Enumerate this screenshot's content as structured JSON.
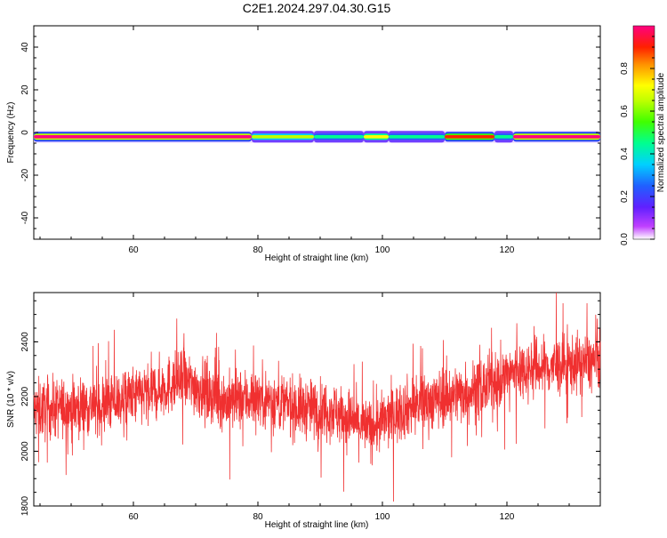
{
  "title": "C2E1.2024.297.04.30.G15",
  "chart_data": [
    {
      "type": "heatmap",
      "xlabel": "Height of straight line (km)",
      "ylabel": "Frequency (Hz)",
      "xlim": [
        44,
        135
      ],
      "ylim": [
        -50,
        50
      ],
      "xticks": [
        "60",
        "80",
        "100",
        "120"
      ],
      "yticks": [
        "-40",
        "-20",
        "0",
        "20",
        "40"
      ],
      "colorbar_label": "Normalized spectral amplitude",
      "colorbar_ticks": [
        "0.0",
        "0.2",
        "0.4",
        "0.6",
        "0.8"
      ],
      "band_center_hz": -2,
      "band_segments": [
        {
          "x0": 44,
          "x1": 79,
          "amplitude": 1.0
        },
        {
          "x0": 79,
          "x1": 89,
          "amplitude": 0.7
        },
        {
          "x0": 89,
          "x1": 97,
          "amplitude": 0.45
        },
        {
          "x0": 97,
          "x1": 101,
          "amplitude": 0.8
        },
        {
          "x0": 101,
          "x1": 110,
          "amplitude": 0.5
        },
        {
          "x0": 110,
          "x1": 118,
          "amplitude": 0.95
        },
        {
          "x0": 118,
          "x1": 121,
          "amplitude": 0.5
        },
        {
          "x0": 121,
          "x1": 135,
          "amplitude": 1.0
        }
      ],
      "grid": false
    },
    {
      "type": "line",
      "xlabel": "Height of straight line (km)",
      "ylabel": "SNR (10 * v/v)",
      "xlim": [
        44,
        135
      ],
      "ylim": [
        1800,
        2580
      ],
      "xticks": [
        "60",
        "80",
        "100",
        "120"
      ],
      "yticks": [
        "1800",
        "2000",
        "2200",
        "2400"
      ],
      "series": [
        {
          "color": "#f03030",
          "trend": [
            {
              "x": 44,
              "y": 2150
            },
            {
              "x": 55,
              "y": 2170
            },
            {
              "x": 62,
              "y": 2210
            },
            {
              "x": 68,
              "y": 2260
            },
            {
              "x": 75,
              "y": 2180
            },
            {
              "x": 80,
              "y": 2200
            },
            {
              "x": 86,
              "y": 2160
            },
            {
              "x": 92,
              "y": 2150
            },
            {
              "x": 98,
              "y": 2080
            },
            {
              "x": 104,
              "y": 2160
            },
            {
              "x": 110,
              "y": 2200
            },
            {
              "x": 116,
              "y": 2230
            },
            {
              "x": 122,
              "y": 2300
            },
            {
              "x": 128,
              "y": 2310
            },
            {
              "x": 135,
              "y": 2330
            }
          ],
          "noise_amplitude": 100
        }
      ],
      "grid": false
    }
  ]
}
